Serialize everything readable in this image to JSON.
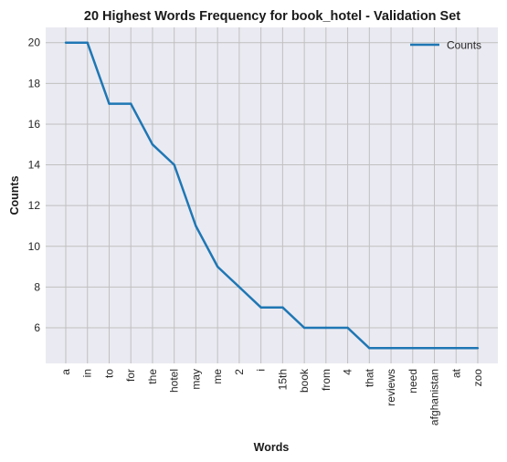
{
  "chart_data": {
    "type": "line",
    "title": "20 Highest Words Frequency for book_hotel - Validation Set",
    "xlabel": "Words",
    "ylabel": "Counts",
    "categories": [
      "a",
      "in",
      "to",
      "for",
      "the",
      "hotel",
      "may",
      "me",
      "2",
      "i",
      "15th",
      "book",
      "from",
      "4",
      "that",
      "reviews",
      "need",
      "afghanistan",
      "at",
      "zoo"
    ],
    "series": [
      {
        "name": "Counts",
        "values": [
          20,
          20,
          17,
          17,
          15,
          14,
          11,
          9,
          8,
          7,
          7,
          6,
          6,
          6,
          5,
          5,
          5,
          5,
          5,
          5
        ]
      }
    ],
    "yticks": [
      6,
      8,
      10,
      12,
      14,
      16,
      18,
      20
    ],
    "ylim": [
      4.25,
      20.75
    ],
    "grid": true,
    "legend_position": "top-right",
    "colors": {
      "line": "#1f77b4",
      "background": "#eaeaf2",
      "grid": "#c0c0c0"
    }
  }
}
